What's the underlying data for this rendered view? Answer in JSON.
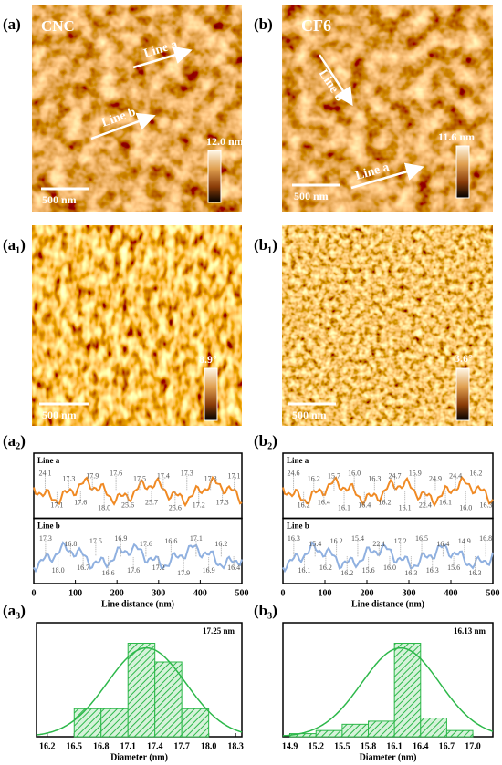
{
  "panels": {
    "a": {
      "label": "(a)",
      "sample": "CNC",
      "line_a": "Line a",
      "line_b": "Line b",
      "scale": "500 nm",
      "colorbar": "12.0 nm"
    },
    "b": {
      "label": "(b)",
      "sample": "CF6",
      "line_a": "Line a",
      "line_b": "Line b",
      "scale": "500 nm",
      "colorbar": "11.6 nm"
    },
    "a1": {
      "label": "(a₁)",
      "scale": "500 nm",
      "colorbar": "8.9°"
    },
    "b1": {
      "label": "(b₁)",
      "scale": "500 nm",
      "colorbar": "3.6°"
    }
  },
  "chart_data": [
    {
      "type": "profile",
      "label": "(a₂)",
      "xlabel": "Line distance (nm)",
      "xlim": [
        0,
        500
      ],
      "xticks": [
        0,
        100,
        200,
        300,
        400,
        500
      ],
      "series": [
        {
          "name": "Line a",
          "color": "#f08a24",
          "annotations": [
            "24.1",
            "17.1",
            "17.3",
            "17.6",
            "17.9",
            "18.0",
            "17.6",
            "25.6",
            "17.5",
            "25.7",
            "17.4",
            "25.6",
            "17.3",
            "17.2",
            "17.8",
            "17.3",
            "17.1"
          ]
        },
        {
          "name": "Line b",
          "color": "#8fb0e0",
          "annotations": [
            "17.3",
            "18.0",
            "16.8",
            "16.7",
            "17.5",
            "16.6",
            "16.9",
            "17.6",
            "17.6",
            "17.2",
            "16.6",
            "17.9",
            "17.1",
            "16.9",
            "16.2",
            "16.4"
          ]
        }
      ]
    },
    {
      "type": "profile",
      "label": "(b₂)",
      "xlabel": "Line distance (nm)",
      "xlim": [
        0,
        500
      ],
      "xticks": [
        0,
        100,
        200,
        300,
        400,
        500
      ],
      "series": [
        {
          "name": "Line a",
          "color": "#f08a24",
          "annotations": [
            "24.6",
            "16.2",
            "16.2",
            "16.4",
            "15.7",
            "16.1",
            "16.0",
            "16.4",
            "16.3",
            "16.2",
            "24.7",
            "16.1",
            "15.9",
            "22.4",
            "24.9",
            "16.1",
            "24.4",
            "16.0",
            "16.2",
            "16.3"
          ]
        },
        {
          "name": "Line b",
          "color": "#8fb0e0",
          "annotations": [
            "16.3",
            "16.1",
            "15.4",
            "16.2",
            "16.2",
            "16.2",
            "15.4",
            "15.6",
            "22.1",
            "16.0",
            "17.2",
            "16.3",
            "16.5",
            "16.3",
            "16.4",
            "15.6",
            "14.9",
            "16.3",
            "16.8"
          ]
        }
      ]
    },
    {
      "type": "histogram",
      "label": "(a₃)",
      "annotation": "17.25 nm",
      "xlabel": "Diameter (nm)",
      "color": "#2db84a",
      "bins": [
        16.5,
        16.8,
        17.1,
        17.4,
        17.7,
        18.0
      ],
      "counts": [
        3,
        3,
        10,
        8,
        3
      ],
      "xlim": [
        16.08,
        18.37
      ],
      "xticks": [
        16.2,
        16.5,
        16.8,
        17.1,
        17.4,
        17.7,
        {
          "value": 18,
          "label": "18.0"
        },
        18.3
      ]
    },
    {
      "type": "histogram",
      "label": "(b₃)",
      "annotation": "16.13 nm",
      "xlabel": "Diameter (nm)",
      "color": "#2db84a",
      "bins": [
        14.9,
        15.2,
        15.5,
        15.8,
        16.1,
        16.4,
        16.7,
        17.0
      ],
      "counts": [
        1,
        2,
        4,
        5,
        30,
        6,
        2
      ],
      "xlim": [
        14.82,
        17.23
      ],
      "xticks": [
        14.9,
        15.2,
        15.5,
        15.8,
        16.1,
        16.4,
        16.7,
        {
          "value": 17,
          "label": "17.0"
        }
      ]
    }
  ]
}
